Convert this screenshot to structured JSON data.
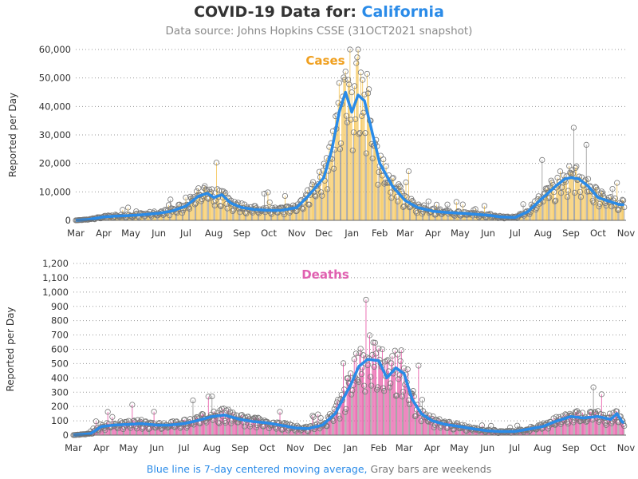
{
  "header": {
    "title_prefix": "COVID-19 Data for: ",
    "state": "California",
    "subtitle": "Data source: Johns Hopkins CSSE (31OCT2021 snapshot)"
  },
  "footer": {
    "blue_text": "Blue line is 7-day centered moving average,",
    "gray_text": " Gray bars are weekends"
  },
  "colors": {
    "cases_bar": "#f6c75a",
    "cases_label": "#f0a020",
    "deaths_bar": "#e85aa8",
    "deaths_label": "#e060b0",
    "avg_line": "#2a8be8",
    "weekend_bar": "#9a9a9a"
  },
  "chart_data": [
    {
      "type": "bar",
      "panel": "cases",
      "label": "Cases",
      "ylabel": "Reported per Day",
      "ylim": [
        0,
        60000
      ],
      "yticks": [
        0,
        10000,
        20000,
        30000,
        40000,
        50000,
        60000
      ],
      "ytick_labels": [
        "0",
        "10,000",
        "20,000",
        "30,000",
        "40,000",
        "50,000",
        "60,000"
      ],
      "xtick_labels": [
        "Mar",
        "Apr",
        "May",
        "Jun",
        "Jul",
        "Aug",
        "Sep",
        "Oct",
        "Nov",
        "Dec",
        "Jan",
        "Feb",
        "Mar",
        "Apr",
        "May",
        "Jun",
        "Jul",
        "Aug",
        "Sep",
        "Oct",
        "Nov"
      ],
      "grid": "horizontal dotted",
      "x_start": "2020-03-01",
      "series": [
        {
          "name": "7-day centered moving average",
          "x": [
            "2020-03-01",
            "2020-03-15",
            "2020-04-01",
            "2020-04-15",
            "2020-05-01",
            "2020-05-15",
            "2020-06-01",
            "2020-06-15",
            "2020-07-01",
            "2020-07-15",
            "2020-07-25",
            "2020-08-01",
            "2020-08-10",
            "2020-08-20",
            "2020-09-01",
            "2020-09-15",
            "2020-10-01",
            "2020-10-15",
            "2020-11-01",
            "2020-11-15",
            "2020-12-01",
            "2020-12-10",
            "2020-12-18",
            "2020-12-25",
            "2021-01-01",
            "2021-01-08",
            "2021-01-15",
            "2021-01-22",
            "2021-02-01",
            "2021-02-15",
            "2021-03-01",
            "2021-03-15",
            "2021-04-01",
            "2021-04-15",
            "2021-05-01",
            "2021-05-15",
            "2021-06-01",
            "2021-06-15",
            "2021-07-01",
            "2021-07-15",
            "2021-08-01",
            "2021-08-15",
            "2021-08-25",
            "2021-09-01",
            "2021-09-10",
            "2021-09-20",
            "2021-10-01",
            "2021-10-15",
            "2021-10-25"
          ],
          "values": [
            0,
            300,
            1200,
            1500,
            1700,
            2000,
            2500,
            3200,
            5000,
            8500,
            9500,
            8000,
            9000,
            6000,
            4500,
            3800,
            3500,
            3500,
            4500,
            9000,
            15000,
            25000,
            38000,
            45000,
            38000,
            44000,
            42000,
            33000,
            20000,
            12000,
            7000,
            4500,
            3200,
            2800,
            2500,
            2200,
            1800,
            1200,
            1000,
            3000,
            8000,
            12000,
            14500,
            15000,
            14500,
            12000,
            8000,
            6500,
            5500
          ]
        }
      ],
      "weekly_cycle_note": "daily bars (yellow weekdays, gray weekends) with circle markers scattered around the average"
    },
    {
      "type": "bar",
      "panel": "deaths",
      "label": "Deaths",
      "ylabel": "Reported per Day",
      "ylim": [
        0,
        1200
      ],
      "yticks": [
        0,
        100,
        200,
        300,
        400,
        500,
        600,
        700,
        800,
        900,
        1000,
        1100,
        1200
      ],
      "ytick_labels": [
        "0",
        "100",
        "200",
        "300",
        "400",
        "500",
        "600",
        "700",
        "800",
        "900",
        "1,000",
        "1,100",
        "1,200"
      ],
      "xtick_labels": [
        "Mar",
        "Apr",
        "May",
        "Jun",
        "Jul",
        "Aug",
        "Sep",
        "Oct",
        "Nov",
        "Dec",
        "Jan",
        "Feb",
        "Mar",
        "Apr",
        "May",
        "Jun",
        "Jul",
        "Aug",
        "Sep",
        "Oct",
        "Nov"
      ],
      "grid": "horizontal dotted",
      "x_start": "2020-03-01",
      "series": [
        {
          "name": "7-day centered moving average",
          "x": [
            "2020-03-01",
            "2020-03-20",
            "2020-04-01",
            "2020-04-15",
            "2020-05-01",
            "2020-05-15",
            "2020-06-01",
            "2020-06-15",
            "2020-07-01",
            "2020-07-15",
            "2020-08-01",
            "2020-08-15",
            "2020-09-01",
            "2020-09-15",
            "2020-10-01",
            "2020-10-15",
            "2020-11-01",
            "2020-11-15",
            "2020-12-01",
            "2020-12-15",
            "2021-01-01",
            "2021-01-10",
            "2021-01-20",
            "2021-02-01",
            "2021-02-10",
            "2021-02-20",
            "2021-03-01",
            "2021-03-10",
            "2021-03-20",
            "2021-04-01",
            "2021-04-15",
            "2021-05-01",
            "2021-05-15",
            "2021-06-01",
            "2021-06-15",
            "2021-07-01",
            "2021-07-15",
            "2021-08-01",
            "2021-08-15",
            "2021-09-01",
            "2021-09-15",
            "2021-10-01",
            "2021-10-15",
            "2021-10-22",
            "2021-10-28"
          ],
          "values": [
            0,
            10,
            60,
            70,
            75,
            80,
            70,
            70,
            80,
            100,
            130,
            140,
            110,
            95,
            85,
            70,
            50,
            45,
            70,
            150,
            350,
            480,
            530,
            520,
            400,
            470,
            430,
            250,
            150,
            100,
            75,
            60,
            45,
            30,
            25,
            25,
            40,
            60,
            95,
            130,
            120,
            130,
            110,
            150,
            90
          ]
        }
      ]
    }
  ]
}
